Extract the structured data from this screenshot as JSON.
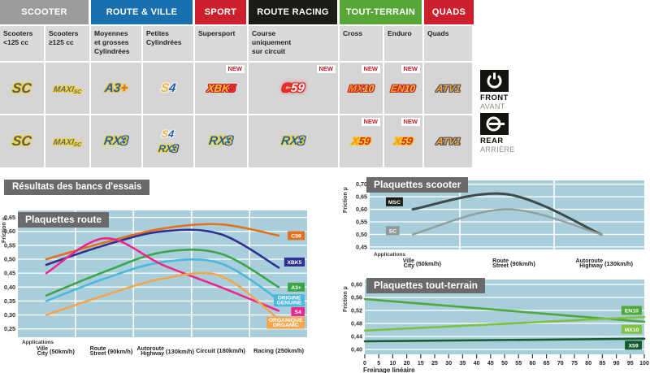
{
  "section_title": "Résultats des bancs d'essais",
  "colors": {
    "plot_bg": "#a9cedb",
    "chart_title_bg": "#6a6a6a",
    "new_badge": "#cc1b2b",
    "grid_line": "#ffffff"
  },
  "table": {
    "new_label": "NEW",
    "groups": [
      {
        "label": "SCOOTER",
        "color": "#9c9c9c",
        "span": 2
      },
      {
        "label": "ROUTE & VILLE",
        "color": "#1a6fae",
        "span": 2
      },
      {
        "label": "SPORT",
        "color": "#cd1f2e",
        "span": 1
      },
      {
        "label": "ROUTE RACING",
        "color": "#1b1b18",
        "span": 1
      },
      {
        "label": "TOUT-TERRAIN",
        "color": "#56a738",
        "span": 2
      },
      {
        "label": "QUADS",
        "color": "#cd1f2e",
        "span": 1
      }
    ],
    "columns": [
      {
        "label": "Scooters\n<125 cc"
      },
      {
        "label": "Scooters\n≥125 cc"
      },
      {
        "label": "Moyennes\net grosses\nCylindrées"
      },
      {
        "label": "Petites\nCylindrées"
      },
      {
        "label": "Supersport"
      },
      {
        "label": "Course\nuniquement\nsur circuit"
      },
      {
        "label": "Cross"
      },
      {
        "label": "Enduro"
      },
      {
        "label": "Quads"
      }
    ],
    "rows": [
      {
        "side": "front",
        "cells": [
          {
            "products": [
              "SC"
            ]
          },
          {
            "products": [
              "MAXI-SC"
            ]
          },
          {
            "products": [
              "A3+"
            ]
          },
          {
            "products": [
              "S4"
            ]
          },
          {
            "products": [
              "XBK5"
            ],
            "new": true
          },
          {
            "products": [
              "C59"
            ],
            "new": true
          },
          {
            "products": [
              "MX10"
            ],
            "new": true
          },
          {
            "products": [
              "EN10"
            ],
            "new": true
          },
          {
            "products": [
              "ATV1"
            ]
          }
        ]
      },
      {
        "side": "rear",
        "cells": [
          {
            "products": [
              "SC"
            ]
          },
          {
            "products": [
              "MAXI-SC"
            ]
          },
          {
            "products": [
              "RX3"
            ]
          },
          {
            "products": [
              "S4",
              "RX3"
            ]
          },
          {
            "products": [
              "RX3"
            ]
          },
          {
            "products": [
              "RX3"
            ]
          },
          {
            "products": [
              "X59"
            ],
            "new": true
          },
          {
            "products": [
              "X59"
            ],
            "new": true
          },
          {
            "products": [
              "ATV1"
            ]
          }
        ]
      }
    ]
  },
  "products": {
    "SC": {
      "outline": "#f2d43d",
      "parts": [
        {
          "t": "SC",
          "c": "#5b5b5e",
          "s": 17
        }
      ]
    },
    "MAXI-SC": {
      "outline": "#f2d43d",
      "parts": [
        {
          "t": "MAXI",
          "c": "#6a6a6d",
          "s": 10
        },
        {
          "t": "SC",
          "c": "#6a6a6d",
          "s": 7,
          "dy": 2
        }
      ]
    },
    "A3+": {
      "outline": "#f2c32c",
      "parts": [
        {
          "t": "A3",
          "c": "#1e5fae",
          "s": 15
        },
        {
          "t": "+",
          "c": "#e0622e",
          "s": 15
        }
      ]
    },
    "S4": {
      "outline": "#f2f2f2",
      "parts": [
        {
          "t": "S",
          "c": "#f2b437",
          "s": 15
        },
        {
          "t": "4",
          "c": "#1e5fae",
          "s": 15
        }
      ]
    },
    "XBK5": {
      "outline": "#cf1b24",
      "parts": [
        {
          "t": "XBK",
          "c": "#f7c52c",
          "s": 13
        },
        {
          "t": "5",
          "c": "#e8352c",
          "s": 13
        }
      ]
    },
    "C59": {
      "outline": "#df241f",
      "glow": "#e8352c",
      "parts": [
        {
          "t": "C",
          "c": "#e8352c",
          "s": 15
        },
        {
          "t": "59",
          "c": "#ffffff",
          "s": 15
        }
      ]
    },
    "MX10": {
      "outline": "#c1272d",
      "parts": [
        {
          "t": "MX",
          "c": "#f7941d",
          "s": 12
        },
        {
          "t": "10",
          "c": "#f7c52c",
          "s": 12
        }
      ]
    },
    "EN10": {
      "outline": "#c1272d",
      "parts": [
        {
          "t": "EN",
          "c": "#f7a81d",
          "s": 12
        },
        {
          "t": "10",
          "c": "#f7c52c",
          "s": 12
        }
      ]
    },
    "ATV1": {
      "outline": "#55565a",
      "parts": [
        {
          "t": "ATV1",
          "c": "#f2a437",
          "s": 12
        }
      ]
    },
    "RX3": {
      "outline": "#f2d43d",
      "parts": [
        {
          "t": "RX",
          "c": "#1e5fae",
          "s": 15
        },
        {
          "t": "3",
          "c": "#f7c52c",
          "s": 15,
          "o": "#1e5fae"
        }
      ]
    },
    "X59": {
      "outline": "#f7c52c",
      "parts": [
        {
          "t": "X",
          "c": "#f29a1d",
          "s": 13
        },
        {
          "t": "59",
          "c": "#d8231f",
          "s": 13
        }
      ]
    }
  },
  "indicators": {
    "front": {
      "label": "FRONT",
      "sublabel": "AVANT"
    },
    "rear": {
      "label": "REAR",
      "sublabel": "ARRIÈRE"
    }
  },
  "chart_data": [
    {
      "id": "route",
      "type": "line",
      "title": "Plaquettes route",
      "ylabel": "Friction µ",
      "applications_label": "Applications",
      "ymin": 0.22,
      "ymax": 0.675,
      "yticks": {
        "from": 0.25,
        "to": 0.65,
        "step": 0.05
      },
      "categories": [
        {
          "fr": "Ville",
          "en": "City",
          "speed": "(50km/h)"
        },
        {
          "fr": "Route",
          "en": "Street",
          "speed": "(90km/h)"
        },
        {
          "fr": "Autoroute",
          "en": "Highway",
          "speed": "(130km/h)"
        },
        {
          "fr": "Circuit",
          "speed": "(180km/h)"
        },
        {
          "fr": "Racing",
          "speed": "(250km/h)"
        }
      ],
      "series": [
        {
          "name": "C59",
          "color": "#e2711d",
          "values": [
            0.5,
            0.56,
            0.61,
            0.625,
            0.585
          ],
          "label": {
            "text": "C59",
            "mu": 0.585
          }
        },
        {
          "name": "XBK5",
          "color": "#2e3192",
          "values": [
            0.48,
            0.55,
            0.6,
            0.59,
            0.47
          ],
          "label": {
            "text": "XBK5",
            "mu": 0.49
          }
        },
        {
          "name": "A3+",
          "color": "#3aa648",
          "values": [
            0.37,
            0.455,
            0.525,
            0.52,
            0.4
          ],
          "label": {
            "text": "A3+",
            "mu": 0.4
          }
        },
        {
          "name": "ORIGINE GENUINE",
          "color": "#4cb8dc",
          "values": [
            0.35,
            0.43,
            0.49,
            0.485,
            0.355
          ],
          "label": {
            "text": "ORIGINE\nGENUINE",
            "mu": 0.352
          }
        },
        {
          "name": "S4",
          "color": "#ec268f",
          "values": [
            0.45,
            0.575,
            0.48,
            0.4,
            0.315
          ],
          "label": {
            "text": "S4",
            "mu": 0.312
          }
        },
        {
          "name": "ORGANIQUE ORGANIC",
          "color": "#f2a74e",
          "values": [
            0.3,
            0.37,
            0.43,
            0.44,
            0.285
          ],
          "label": {
            "text": "ORGANIQUE\nORGANIC",
            "mu": 0.272
          }
        }
      ]
    },
    {
      "id": "scooter",
      "type": "line",
      "title": "Plaquettes scooter",
      "ylabel": "Friction µ",
      "applications_label": "Applications",
      "ymin": 0.44,
      "ymax": 0.715,
      "yticks": {
        "from": 0.45,
        "to": 0.7,
        "step": 0.05
      },
      "categories": [
        {
          "fr": "Ville",
          "en": "City",
          "speed": "(50km/h)"
        },
        {
          "fr": "Route",
          "en": "Street",
          "speed": "(90km/h)"
        },
        {
          "fr": "Autoroute",
          "en": "Highway",
          "speed": "(130km/h)"
        }
      ],
      "series": [
        {
          "name": "MSC",
          "color": "#3e4b48",
          "width": 3,
          "values": [
            0.6,
            0.66,
            0.5
          ],
          "label": {
            "text": "MSC",
            "mu": 0.63,
            "side": "start",
            "bg": "#1d1d1b"
          }
        },
        {
          "name": "SC",
          "color": "#93a09d",
          "width": 2.4,
          "values": [
            0.5,
            0.6,
            0.5
          ],
          "label": {
            "text": "SC",
            "mu": 0.515,
            "side": "start",
            "bg": "#8e9b98"
          }
        }
      ]
    },
    {
      "id": "tout-terrain",
      "type": "line",
      "title": "Plaquettes tout-terrain",
      "ylabel": "Friction µ",
      "xlabel": "Freinage linéaire",
      "ymin": 0.385,
      "ymax": 0.615,
      "yticks": {
        "from": 0.4,
        "to": 0.6,
        "step": 0.04
      },
      "x_numeric": {
        "min": 0,
        "max": 100,
        "tick_labels": [
          "0",
          "5",
          "10",
          "20",
          "15",
          "25",
          "30",
          "35",
          "40",
          "45",
          "50",
          "55",
          "60",
          "65",
          "70",
          "75",
          "80",
          "85",
          "90",
          "95",
          "100"
        ]
      },
      "series": [
        {
          "name": "EN10",
          "color": "#4ea83c",
          "values": [
            0.555,
            0.485
          ],
          "label": {
            "text": "EN10",
            "mu": 0.52
          }
        },
        {
          "name": "MX10",
          "color": "#7ec242",
          "values": [
            0.458,
            0.5
          ],
          "label": {
            "text": "MX10",
            "mu": 0.462
          }
        },
        {
          "name": "X59",
          "color": "#175c2e",
          "values": [
            0.425,
            0.433
          ],
          "label": {
            "text": "X59",
            "mu": 0.413
          }
        }
      ]
    }
  ]
}
